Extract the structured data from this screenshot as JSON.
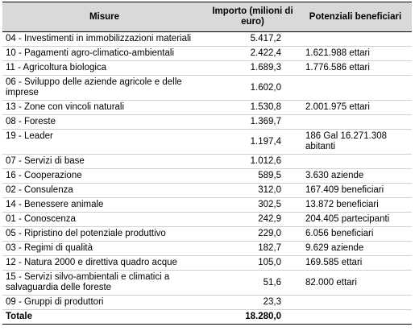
{
  "table": {
    "header": [
      "Misure",
      "Importo (milioni di euro)",
      "Potenziali beneficiari"
    ],
    "rows": [
      {
        "misura": "04 - Investimenti in immobilizzazioni materiali",
        "importo": "5.417,2"
      },
      {
        "misura": "10 - Pagamenti agro-climatico-ambientali",
        "importo": "2.422,4",
        "beneficiari": "1.621.988 ettari"
      },
      {
        "misura": "11 - Agricoltura biologica",
        "importo": "1.689,3",
        "beneficiari": "1.776.586 ettari"
      },
      {
        "misura": "06 - Sviluppo delle aziende agricole e delle imprese",
        "importo": "1.602,0"
      },
      {
        "misura": "13 - Zone con vincoli naturali",
        "importo": "1.530,8",
        "beneficiari": "2.001.975 ettari"
      },
      {
        "misura": "08 - Foreste",
        "importo": "1.369,7"
      },
      {
        "misura": "19 - Leader",
        "importo": "1.197,4",
        "beneficiari": "186 Gal 16.271.308 abitanti"
      },
      {
        "misura": "07 - Servizi di base",
        "importo": "1.012,6"
      },
      {
        "misura": "16 - Cooperazione",
        "importo": "589,5",
        "beneficiari": "3.630 aziende"
      },
      {
        "misura": "02 - Consulenza",
        "importo": "312,0",
        "beneficiari": "167.409 beneficiari"
      },
      {
        "misura": "14 - Benessere animale",
        "importo": "302,5",
        "beneficiari": "13.872 beneficiari"
      },
      {
        "misura": "01 - Conoscenza",
        "importo": "242,9",
        "beneficiari": "204.405 partecipanti"
      },
      {
        "misura": "05 - Ripristino del potenziale produttivo",
        "importo": "229,0",
        "beneficiari": "6.056 beneficiari"
      },
      {
        "misura": "03 - Regimi di qualità",
        "importo": "182,7",
        "beneficiari": "9.629 aziende"
      },
      {
        "misura": "12 - Natura 2000 e direttiva quadro acque",
        "importo": "105,0",
        "beneficiari": "169.585 ettari"
      },
      {
        "misura": "15 - Servizi silvo-ambientali e climatici a salvaguardia delle foreste",
        "importo": "51,6",
        "beneficiari": "82.000 ettari"
      },
      {
        "misura": "09 - Gruppi di produttori",
        "importo": "23,3"
      }
    ],
    "total": {
      "label": "Totale",
      "importo": "18.280,0"
    }
  }
}
